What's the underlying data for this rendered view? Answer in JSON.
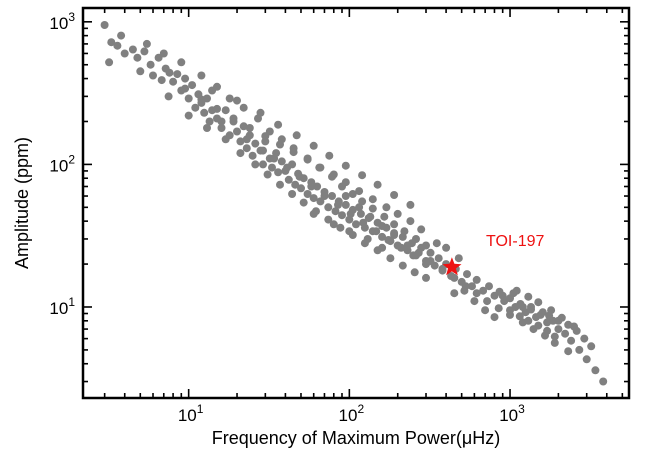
{
  "chart_data": {
    "type": "scatter",
    "title": "",
    "xlabel": "Frequency of Maximum Power(μHz)",
    "ylabel": "Amplitude (ppm)",
    "xscale": "log",
    "yscale": "log",
    "xlim": [
      2.2,
      5500
    ],
    "ylim": [
      2.3,
      1250
    ],
    "grid": false,
    "x_ticks": [
      {
        "base": "10",
        "exp": "1",
        "value": 10
      },
      {
        "base": "10",
        "exp": "2",
        "value": 100
      },
      {
        "base": "10",
        "exp": "3",
        "value": 1000
      }
    ],
    "y_ticks": [
      {
        "base": "10",
        "exp": "1",
        "value": 10
      },
      {
        "base": "10",
        "exp": "2",
        "value": 100
      },
      {
        "base": "10",
        "exp": "3",
        "value": 1000
      }
    ],
    "point_color": "#808080",
    "highlight_color": "#ee1111",
    "series": [
      {
        "points": [
          [
            3.0,
            950
          ],
          [
            3.3,
            720
          ],
          [
            3.6,
            680
          ],
          [
            4.0,
            600
          ],
          [
            3.2,
            520
          ],
          [
            4.5,
            640
          ],
          [
            4.8,
            560
          ],
          [
            5.0,
            450
          ],
          [
            5.3,
            620
          ],
          [
            5.8,
            500
          ],
          [
            6.0,
            420
          ],
          [
            6.5,
            560
          ],
          [
            6.8,
            390
          ],
          [
            7.2,
            470
          ],
          [
            7.6,
            440
          ],
          [
            8.0,
            380
          ],
          [
            8.5,
            430
          ],
          [
            9.0,
            330
          ],
          [
            9.5,
            400
          ],
          [
            10,
            290
          ],
          [
            10.5,
            360
          ],
          [
            11,
            250
          ],
          [
            11.5,
            310
          ],
          [
            12,
            270
          ],
          [
            12.5,
            230
          ],
          [
            13,
            290
          ],
          [
            13.5,
            200
          ],
          [
            14,
            240
          ],
          [
            15,
            210
          ],
          [
            16,
            180
          ],
          [
            17,
            240
          ],
          [
            18,
            160
          ],
          [
            19,
            200
          ],
          [
            20,
            170
          ],
          [
            21,
            145
          ],
          [
            22,
            185
          ],
          [
            23,
            130
          ],
          [
            24,
            160
          ],
          [
            25,
            115
          ],
          [
            26,
            140
          ],
          [
            28,
            125
          ],
          [
            29,
            100
          ],
          [
            30,
            145
          ],
          [
            32,
            110
          ],
          [
            33,
            95
          ],
          [
            35,
            120
          ],
          [
            36,
            88
          ],
          [
            38,
            105
          ],
          [
            40,
            90
          ],
          [
            42,
            78
          ],
          [
            44,
            100
          ],
          [
            46,
            72
          ],
          [
            48,
            86
          ],
          [
            50,
            68
          ],
          [
            52,
            80
          ],
          [
            55,
            62
          ],
          [
            58,
            75
          ],
          [
            60,
            58
          ],
          [
            63,
            70
          ],
          [
            66,
            55
          ],
          [
            70,
            64
          ],
          [
            74,
            50
          ],
          [
            78,
            60
          ],
          [
            82,
            47
          ],
          [
            86,
            55
          ],
          [
            90,
            44
          ],
          [
            95,
            52
          ],
          [
            100,
            41
          ],
          [
            105,
            48
          ],
          [
            110,
            38
          ],
          [
            118,
            45
          ],
          [
            125,
            36
          ],
          [
            132,
            42
          ],
          [
            140,
            34
          ],
          [
            150,
            39
          ],
          [
            160,
            31
          ],
          [
            170,
            36
          ],
          [
            180,
            29
          ],
          [
            190,
            33
          ],
          [
            200,
            27
          ],
          [
            215,
            31
          ],
          [
            230,
            25
          ],
          [
            245,
            28
          ],
          [
            260,
            23
          ],
          [
            280,
            26
          ],
          [
            300,
            21
          ],
          [
            320,
            24
          ],
          [
            340,
            19.5
          ],
          [
            360,
            22
          ],
          [
            380,
            18
          ],
          [
            400,
            20
          ],
          [
            430,
            16.5
          ],
          [
            460,
            18.5
          ],
          [
            500,
            15
          ],
          [
            540,
            17
          ],
          [
            580,
            14
          ],
          [
            620,
            15.5
          ],
          [
            680,
            13
          ],
          [
            740,
            14
          ],
          [
            800,
            12
          ],
          [
            860,
            12.8
          ],
          [
            920,
            11
          ],
          [
            1000,
            11.5
          ],
          [
            1080,
            10
          ],
          [
            1160,
            10.5
          ],
          [
            1250,
            9.2
          ],
          [
            1350,
            9.6
          ],
          [
            1450,
            8.5
          ],
          [
            1550,
            8.8
          ],
          [
            1700,
            7.8
          ],
          [
            1850,
            8.0
          ],
          [
            2000,
            7.0
          ],
          [
            2200,
            6.5
          ],
          [
            2400,
            5.8
          ],
          [
            2700,
            5.0
          ],
          [
            3000,
            4.3
          ],
          [
            3400,
            3.6
          ],
          [
            3800,
            3.0
          ],
          [
            3.8,
            800
          ],
          [
            5.5,
            700
          ],
          [
            7,
            600
          ],
          [
            9,
            520
          ],
          [
            12,
            420
          ],
          [
            15,
            350
          ],
          [
            18,
            290
          ],
          [
            22,
            250
          ],
          [
            27,
            210
          ],
          [
            32,
            170
          ],
          [
            38,
            150
          ],
          [
            45,
            130
          ],
          [
            55,
            110
          ],
          [
            65,
            95
          ],
          [
            78,
            82
          ],
          [
            90,
            70
          ],
          [
            105,
            62
          ],
          [
            120,
            55
          ],
          [
            140,
            49
          ],
          [
            165,
            43
          ],
          [
            190,
            38
          ],
          [
            220,
            34
          ],
          [
            260,
            30
          ],
          [
            300,
            27
          ],
          [
            7.5,
            300
          ],
          [
            10,
            220
          ],
          [
            13,
            180
          ],
          [
            17,
            150
          ],
          [
            21,
            120
          ],
          [
            26,
            100
          ],
          [
            31,
            85
          ],
          [
            37,
            72
          ],
          [
            44,
            62
          ],
          [
            52,
            54
          ],
          [
            62,
            47
          ],
          [
            74,
            41
          ],
          [
            88,
            36
          ],
          [
            105,
            32
          ],
          [
            125,
            28
          ],
          [
            150,
            25
          ],
          [
            180,
            22
          ],
          [
            215,
            19.5
          ],
          [
            255,
            17.5
          ],
          [
            300,
            16
          ],
          [
            14,
            330
          ],
          [
            20,
            280
          ],
          [
            28,
            230
          ],
          [
            36,
            190
          ],
          [
            47,
            160
          ],
          [
            60,
            135
          ],
          [
            75,
            115
          ],
          [
            95,
            98
          ],
          [
            120,
            84
          ],
          [
            150,
            72
          ],
          [
            190,
            61
          ],
          [
            240,
            52
          ],
          [
            60,
            45
          ],
          [
            80,
            38
          ],
          [
            100,
            34
          ],
          [
            130,
            30
          ],
          [
            160,
            26
          ],
          [
            95,
            60
          ],
          [
            115,
            50
          ],
          [
            135,
            43
          ],
          [
            160,
            37
          ],
          [
            190,
            32
          ],
          [
            230,
            27
          ],
          [
            270,
            24
          ],
          [
            320,
            21
          ],
          [
            380,
            18.5
          ],
          [
            450,
            16
          ],
          [
            530,
            14
          ],
          [
            620,
            12.5
          ],
          [
            720,
            11
          ],
          [
            850,
            9.8
          ],
          [
            1000,
            8.8
          ],
          [
            1200,
            7.8
          ],
          [
            1400,
            7.0
          ],
          [
            1650,
            6.3
          ],
          [
            1900,
            5.6
          ],
          [
            2300,
            4.9
          ],
          [
            1100,
            13
          ],
          [
            1300,
            11.8
          ],
          [
            1500,
            10.8
          ],
          [
            1800,
            9.5
          ],
          [
            2100,
            8.4
          ],
          [
            2500,
            7.3
          ],
          [
            1000,
            9.5
          ],
          [
            1150,
            8.6
          ],
          [
            1300,
            8.0
          ],
          [
            1500,
            7.4
          ],
          [
            1700,
            6.8
          ],
          [
            1900,
            6.2
          ],
          [
            700,
            9.5
          ],
          [
            800,
            8.5
          ],
          [
            900,
            12
          ],
          [
            1050,
            12.5
          ],
          [
            1200,
            10
          ],
          [
            1350,
            10
          ],
          [
            1600,
            9.2
          ],
          [
            1750,
            8.7
          ],
          [
            2000,
            8.0
          ],
          [
            2300,
            7.5
          ],
          [
            2600,
            6.8
          ],
          [
            2900,
            6.0
          ],
          [
            3200,
            5.3
          ],
          [
            450,
            12.5
          ],
          [
            520,
            13
          ],
          [
            600,
            11
          ],
          [
            400,
            26
          ],
          [
            480,
            22
          ],
          [
            350,
            28
          ],
          [
            280,
            35
          ],
          [
            240,
            40
          ],
          [
            200,
            45
          ],
          [
            170,
            50
          ],
          [
            140,
            57
          ],
          [
            115,
            65
          ],
          [
            95,
            75
          ],
          [
            80,
            85
          ],
          [
            66,
            95
          ],
          [
            55,
            108
          ],
          [
            45,
            122
          ],
          [
            37,
            138
          ],
          [
            30,
            158
          ],
          [
            24,
            180
          ],
          [
            19,
            210
          ],
          [
            15,
            245
          ],
          [
            12,
            285
          ],
          [
            9.5,
            340
          ],
          [
            16,
            200
          ],
          [
            23,
            150
          ],
          [
            29,
            125
          ],
          [
            34,
            110
          ],
          [
            41,
            95
          ],
          [
            49,
            82
          ],
          [
            58,
            70
          ],
          [
            70,
            60
          ],
          [
            85,
            52
          ],
          [
            102,
            45
          ],
          [
            122,
            39
          ],
          [
            147,
            34
          ],
          [
            175,
            29.5
          ],
          [
            210,
            26
          ],
          [
            250,
            23
          ],
          [
            300,
            20
          ]
        ]
      },
      {
        "name": "TOI-197",
        "points": [
          [
            435,
            19
          ]
        ]
      }
    ],
    "annotations": [
      {
        "text": "TOI-197"
      }
    ]
  }
}
